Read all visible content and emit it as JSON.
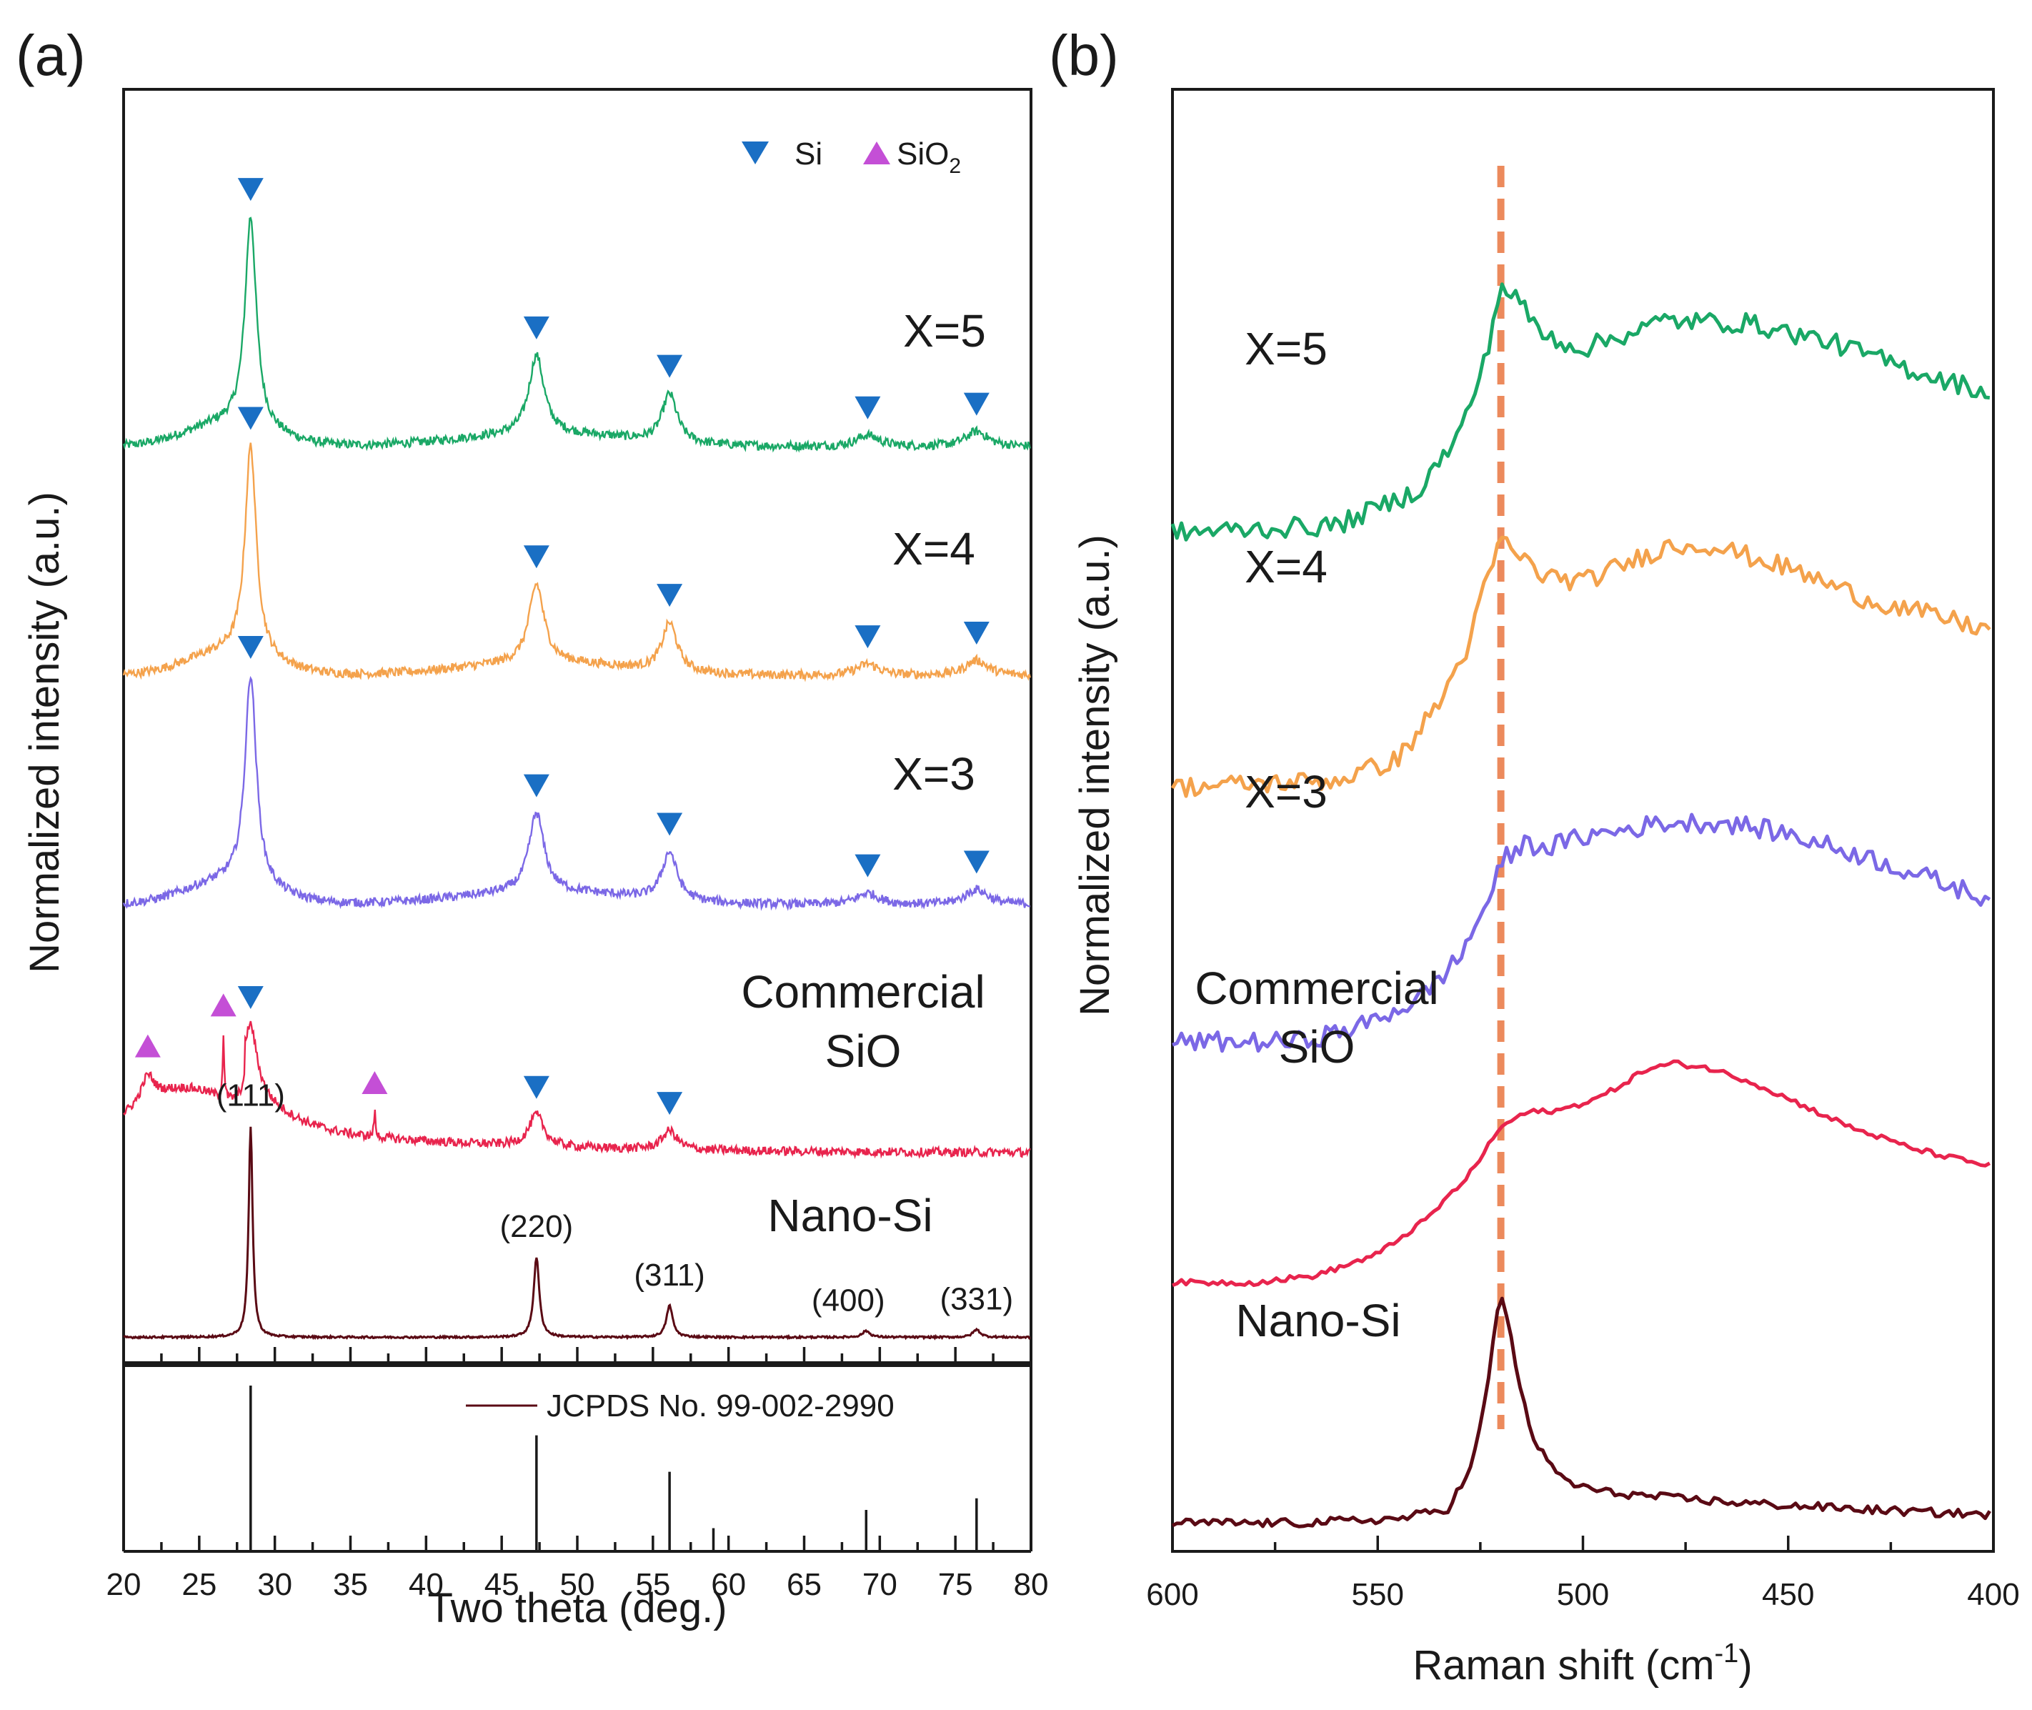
{
  "colors": {
    "x5": "#1aa866",
    "x4": "#f4a24c",
    "x3": "#7b68e6",
    "commercial": "#e8244d",
    "nanosi": "#5a0a14",
    "si_marker": "#1a6fc4",
    "sio2_marker": "#c44fd6",
    "guide": "#ec8a5c",
    "axis": "#1a1a1a"
  },
  "icons": {
    "si": "down-triangle",
    "sio2": "up-triangle"
  },
  "chart_data": [
    {
      "type": "line",
      "panel_label": "(a)",
      "title": "",
      "xlabel": "Two theta (deg.)",
      "ylabel": "Normalized intensity (a.u.)",
      "xlim": [
        20,
        80
      ],
      "xticks": [
        20,
        25,
        30,
        35,
        40,
        45,
        50,
        55,
        60,
        65,
        70,
        75,
        80
      ],
      "tick_labels": [
        "20",
        "25",
        "30",
        "35",
        "40",
        "45",
        "50",
        "55",
        "60",
        "65",
        "70",
        "75",
        "80"
      ],
      "legend": {
        "position": "top-right",
        "entries": [
          {
            "marker": "down-triangle",
            "label": "Si",
            "color": "#1a6fc4"
          },
          {
            "marker": "up-triangle",
            "label": "SiO",
            "subscript": "2",
            "color": "#c44fd6"
          }
        ]
      },
      "series": [
        {
          "name": "X=5",
          "label": "X=5",
          "color": "#1aa866",
          "offset": 0.72,
          "peaks": [
            {
              "x": 28.4,
              "height": 0.165,
              "width": 0.45
            },
            {
              "x": 47.3,
              "height": 0.062,
              "width": 0.6
            },
            {
              "x": 56.1,
              "height": 0.038,
              "width": 0.6
            },
            {
              "x": 69.2,
              "height": 0.009,
              "width": 0.9
            },
            {
              "x": 76.4,
              "height": 0.012,
              "width": 0.9
            }
          ],
          "si_markers": [
            28.4,
            47.3,
            56.1,
            69.2,
            76.4
          ]
        },
        {
          "name": "X=4",
          "label": "X=4",
          "color": "#f4a24c",
          "offset": 0.54,
          "peaks": [
            {
              "x": 28.4,
              "height": 0.165,
              "width": 0.45
            },
            {
              "x": 47.3,
              "height": 0.062,
              "width": 0.6
            },
            {
              "x": 56.1,
              "height": 0.038,
              "width": 0.6
            },
            {
              "x": 69.2,
              "height": 0.009,
              "width": 0.9
            },
            {
              "x": 76.4,
              "height": 0.012,
              "width": 0.9
            }
          ],
          "si_markers": [
            28.4,
            47.3,
            56.1,
            69.2,
            76.4
          ]
        },
        {
          "name": "X=3",
          "label": "X=3",
          "color": "#7b68e6",
          "offset": 0.36,
          "peaks": [
            {
              "x": 28.4,
              "height": 0.165,
              "width": 0.45
            },
            {
              "x": 47.3,
              "height": 0.062,
              "width": 0.6
            },
            {
              "x": 56.1,
              "height": 0.038,
              "width": 0.6
            },
            {
              "x": 69.2,
              "height": 0.009,
              "width": 0.9
            },
            {
              "x": 76.4,
              "height": 0.012,
              "width": 0.9
            }
          ],
          "si_markers": [
            28.4,
            47.3,
            56.1,
            69.2,
            76.4
          ]
        },
        {
          "name": "Commercial SiO",
          "label": [
            "Commercial",
            "SiO"
          ],
          "color": "#e8244d",
          "offset": 0.165,
          "peaks": [
            {
              "x": 21.6,
              "height": 0.02,
              "width": 0.5
            },
            {
              "x": 26.6,
              "height": 0.05,
              "width": 0.06
            },
            {
              "x": 28.4,
              "height": 0.05,
              "width": 0.5
            },
            {
              "x": 36.6,
              "height": 0.02,
              "width": 0.06
            },
            {
              "x": 47.3,
              "height": 0.025,
              "width": 0.6
            },
            {
              "x": 56.1,
              "height": 0.015,
              "width": 0.6
            }
          ],
          "si_markers": [
            28.4,
            47.3,
            56.1
          ],
          "sio2_markers": [
            21.6,
            26.6,
            36.6
          ]
        },
        {
          "name": "Nano-Si",
          "label": "Nano-Si",
          "color": "#5a0a14",
          "offset": 0.02,
          "peaks": [
            {
              "x": 28.4,
              "height": 0.165,
              "width": 0.16,
              "hkl": "(111)"
            },
            {
              "x": 47.3,
              "height": 0.063,
              "width": 0.22,
              "hkl": "(220)"
            },
            {
              "x": 56.1,
              "height": 0.025,
              "width": 0.25,
              "hkl": "(311)"
            },
            {
              "x": 69.1,
              "height": 0.005,
              "width": 0.3,
              "hkl": "(400)"
            },
            {
              "x": 76.4,
              "height": 0.006,
              "width": 0.3,
              "hkl": "(331)"
            }
          ]
        }
      ],
      "reference": {
        "label": "JCPDS No. 99-002-2990",
        "sticks": [
          {
            "x": 28.4,
            "intensity": 100
          },
          {
            "x": 47.3,
            "intensity": 70
          },
          {
            "x": 56.1,
            "intensity": 48
          },
          {
            "x": 59.0,
            "intensity": 14
          },
          {
            "x": 69.1,
            "intensity": 25
          },
          {
            "x": 76.4,
            "intensity": 32
          }
        ]
      }
    },
    {
      "type": "line",
      "panel_label": "(b)",
      "title": "",
      "xlabel": "Raman shift (cm",
      "xlabel_sup": "-1",
      "xlabel_end": ")",
      "ylabel": "Normalized intensity (a.u.)",
      "xlim": [
        600,
        400
      ],
      "xticks": [
        600,
        550,
        500,
        450,
        400
      ],
      "tick_labels": [
        "600",
        "550",
        "500",
        "450",
        "400"
      ],
      "reference_line": 520,
      "series": [
        {
          "name": "X=5",
          "label": "X=5",
          "color": "#1aa866",
          "points": [
            [
              600,
              0.72
            ],
            [
              560,
              0.725
            ],
            [
              540,
              0.75
            ],
            [
              530,
              0.79
            ],
            [
              524,
              0.84
            ],
            [
              520,
              0.895
            ],
            [
              516,
              0.885
            ],
            [
              510,
              0.86
            ],
            [
              500,
              0.85
            ],
            [
              480,
              0.87
            ],
            [
              460,
              0.868
            ],
            [
              440,
              0.855
            ],
            [
              420,
              0.835
            ],
            [
              400,
              0.818
            ]
          ]
        },
        {
          "name": "X=4",
          "label": "X=4",
          "color": "#f4a24c",
          "points": [
            [
              600,
              0.54
            ],
            [
              560,
              0.545
            ],
            [
              545,
              0.56
            ],
            [
              535,
              0.6
            ],
            [
              528,
              0.64
            ],
            [
              523,
              0.69
            ],
            [
              520,
              0.715
            ],
            [
              516,
              0.705
            ],
            [
              510,
              0.69
            ],
            [
              500,
              0.685
            ],
            [
              480,
              0.71
            ],
            [
              470,
              0.712
            ],
            [
              450,
              0.695
            ],
            [
              430,
              0.672
            ],
            [
              410,
              0.658
            ],
            [
              400,
              0.65
            ]
          ]
        },
        {
          "name": "X=3",
          "label": "X=3",
          "color": "#7b68e6",
          "points": [
            [
              600,
              0.36
            ],
            [
              570,
              0.36
            ],
            [
              555,
              0.37
            ],
            [
              540,
              0.39
            ],
            [
              530,
              0.42
            ],
            [
              524,
              0.455
            ],
            [
              519,
              0.49
            ],
            [
              514,
              0.5
            ],
            [
              508,
              0.498
            ],
            [
              500,
              0.505
            ],
            [
              480,
              0.515
            ],
            [
              465,
              0.515
            ],
            [
              450,
              0.507
            ],
            [
              430,
              0.49
            ],
            [
              415,
              0.475
            ],
            [
              400,
              0.46
            ]
          ]
        },
        {
          "name": "Commercial SiO",
          "label": [
            "Commercial",
            "SiO"
          ],
          "color": "#e8244d",
          "points": [
            [
              600,
              0.19
            ],
            [
              580,
              0.19
            ],
            [
              565,
              0.195
            ],
            [
              550,
              0.21
            ],
            [
              538,
              0.235
            ],
            [
              528,
              0.265
            ],
            [
              520,
              0.3
            ],
            [
              514,
              0.31
            ],
            [
              505,
              0.312
            ],
            [
              495,
              0.322
            ],
            [
              485,
              0.34
            ],
            [
              478,
              0.345
            ],
            [
              470,
              0.342
            ],
            [
              460,
              0.333
            ],
            [
              450,
              0.32
            ],
            [
              435,
              0.3
            ],
            [
              420,
              0.285
            ],
            [
              410,
              0.278
            ],
            [
              400,
              0.272
            ]
          ]
        },
        {
          "name": "Nano-Si",
          "label": "Nano-Si",
          "color": "#5a0a14",
          "points": [
            [
              600,
              0.02
            ],
            [
              570,
              0.02
            ],
            [
              545,
              0.023
            ],
            [
              533,
              0.03
            ],
            [
              527,
              0.06
            ],
            [
              523,
              0.12
            ],
            [
              521,
              0.17
            ],
            [
              520,
              0.18
            ],
            [
              518,
              0.16
            ],
            [
              515,
              0.11
            ],
            [
              512,
              0.08
            ],
            [
              508,
              0.06
            ],
            [
              503,
              0.048
            ],
            [
              495,
              0.042
            ],
            [
              480,
              0.038
            ],
            [
              460,
              0.034
            ],
            [
              440,
              0.031
            ],
            [
              420,
              0.028
            ],
            [
              400,
              0.026
            ]
          ]
        }
      ]
    }
  ]
}
